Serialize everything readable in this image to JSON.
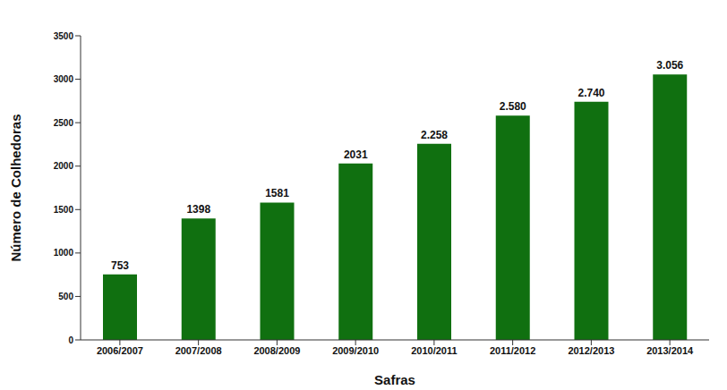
{
  "chart_data": {
    "type": "bar",
    "x_label": "Safras",
    "y_label": "Número de Colhedoras",
    "categories": [
      "2006/2007",
      "2007/2008",
      "2008/2009",
      "2009/2010",
      "2010/2011",
      "2011/2012",
      "2012/2013",
      "2013/2014"
    ],
    "values": [
      753,
      1398,
      1581,
      2031,
      2258,
      2580,
      2740,
      3056
    ],
    "value_labels": [
      "753",
      "1398",
      "1581",
      "2031",
      "2.258",
      "2.580",
      "2.740",
      "3.056"
    ],
    "color": "#107010",
    "ylim": [
      0,
      3500
    ],
    "yticks": [
      0,
      500,
      1000,
      1500,
      2000,
      2500,
      3000,
      3500
    ],
    "grid": false,
    "data_labels": true
  }
}
